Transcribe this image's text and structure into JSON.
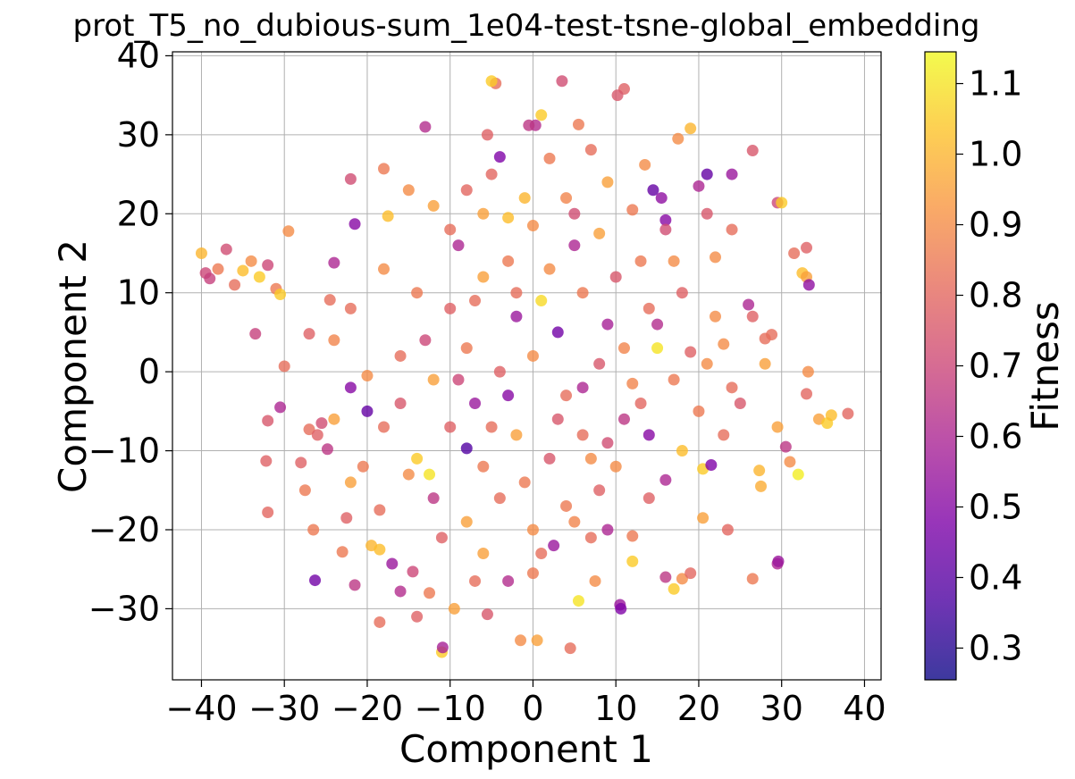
{
  "chart_data": {
    "type": "scatter",
    "title": "prot_T5_no_dubious-sum_1e04-test-tsne-global_embedding",
    "xlabel": "Component 1",
    "ylabel": "Component 2",
    "xlim": [
      -43.5,
      42
    ],
    "ylim": [
      -39,
      40.5
    ],
    "xticks": [
      -40,
      -30,
      -20,
      -10,
      0,
      10,
      20,
      30,
      40
    ],
    "yticks": [
      -30,
      -20,
      -10,
      0,
      10,
      20,
      30,
      40
    ],
    "xtick_labels": [
      "−40",
      "−30",
      "−20",
      "−10",
      "0",
      "10",
      "20",
      "30",
      "40"
    ],
    "ytick_labels": [
      "−30",
      "−20",
      "−10",
      "0",
      "10",
      "20",
      "30",
      "40"
    ],
    "grid": true,
    "colormap": "plasma",
    "colorbar": {
      "label": "Fitness",
      "range": [
        0.255,
        1.145
      ],
      "ticks": [
        0.3,
        0.4,
        0.5,
        0.6,
        0.7,
        0.8,
        0.9,
        1.0,
        1.1
      ],
      "tick_labels": [
        "0.3",
        "0.4",
        "0.5",
        "0.6",
        "0.7",
        "0.8",
        "0.9",
        "1.0",
        "1.1"
      ]
    },
    "points": [
      [
        -40,
        15,
        1.0
      ],
      [
        -39.5,
        12.5,
        0.7
      ],
      [
        -39,
        11.8,
        0.68
      ],
      [
        -38,
        13,
        0.85
      ],
      [
        -37,
        15.5,
        0.72
      ],
      [
        -36,
        11,
        0.82
      ],
      [
        -35,
        12.8,
        1.02
      ],
      [
        -34,
        14,
        0.9
      ],
      [
        -33,
        12,
        1.05
      ],
      [
        -32,
        13.5,
        0.7
      ],
      [
        -31,
        10.5,
        0.85
      ],
      [
        -30.5,
        9.8,
        1.05
      ],
      [
        -33.5,
        4.8,
        0.68
      ],
      [
        -30,
        0.7,
        0.82
      ],
      [
        -30.5,
        -4.5,
        0.6
      ],
      [
        -32,
        -6.2,
        0.75
      ],
      [
        -32.2,
        -11.3,
        0.78
      ],
      [
        -32,
        -17.8,
        0.8
      ],
      [
        -28,
        -11.5,
        0.78
      ],
      [
        -27.5,
        -15,
        0.85
      ],
      [
        -27,
        -7.3,
        0.82
      ],
      [
        -26.5,
        -20,
        0.85
      ],
      [
        -26.3,
        -26.4,
        0.45
      ],
      [
        -25.5,
        -6.5,
        0.72
      ],
      [
        -24.8,
        -9.8,
        0.65
      ],
      [
        -24,
        -6,
        0.95
      ],
      [
        -23,
        -22.8,
        0.85
      ],
      [
        -22.5,
        -18.5,
        0.78
      ],
      [
        -21.5,
        -27,
        0.65
      ],
      [
        -20.5,
        -12,
        0.85
      ],
      [
        -19.5,
        -22,
        1.0
      ],
      [
        -18.5,
        -22.5,
        1.02
      ],
      [
        -18.5,
        -31.7,
        0.82
      ],
      [
        -17,
        -24.3,
        0.55
      ],
      [
        -16,
        -27.8,
        0.62
      ],
      [
        -14.5,
        -25.3,
        0.7
      ],
      [
        -14,
        -31,
        0.78
      ],
      [
        -12.5,
        -28,
        0.85
      ],
      [
        -11,
        -35.5,
        1.05
      ],
      [
        -10.9,
        -34.9,
        0.58
      ],
      [
        -9.5,
        -30,
        0.95
      ],
      [
        -8,
        -9.7,
        0.38
      ],
      [
        -7,
        -26.5,
        0.82
      ],
      [
        -5.5,
        -30.7,
        0.75
      ],
      [
        -3,
        -26.5,
        0.62
      ],
      [
        -1.5,
        -34,
        0.9
      ],
      [
        0,
        -25.5,
        0.85
      ],
      [
        0.5,
        -34,
        0.95
      ],
      [
        2.5,
        -22,
        0.55
      ],
      [
        4.5,
        -35,
        0.82
      ],
      [
        5.5,
        -29,
        1.1
      ],
      [
        7.5,
        -26.5,
        0.9
      ],
      [
        9,
        -20,
        0.6
      ],
      [
        10.5,
        -29.5,
        0.55
      ],
      [
        10.6,
        -30,
        0.48
      ],
      [
        12,
        -20.8,
        0.85
      ],
      [
        14,
        -16,
        0.78
      ],
      [
        16,
        -26,
        0.65
      ],
      [
        17,
        -27.5,
        1.05
      ],
      [
        18,
        -26.2,
        0.9
      ],
      [
        19,
        -25.5,
        0.8
      ],
      [
        20.5,
        -18.5,
        0.95
      ],
      [
        23.5,
        -20,
        0.8
      ],
      [
        26.5,
        -26.2,
        0.85
      ],
      [
        29.5,
        -24.3,
        0.6
      ],
      [
        29.6,
        -24,
        0.55
      ],
      [
        27.5,
        -14.5,
        0.98
      ],
      [
        27.3,
        -12.5,
        1.0
      ],
      [
        30.5,
        -9.5,
        0.65
      ],
      [
        31,
        -11.4,
        0.9
      ],
      [
        32,
        -13,
        1.12
      ],
      [
        33,
        -2.8,
        0.8
      ],
      [
        33.2,
        0,
        0.9
      ],
      [
        34.5,
        -6,
        0.95
      ],
      [
        35.5,
        -6.5,
        1.05
      ],
      [
        36,
        -5.5,
        1.02
      ],
      [
        38,
        -5.3,
        0.8
      ],
      [
        29.5,
        -7,
        0.95
      ],
      [
        32.5,
        12.5,
        1.02
      ],
      [
        33,
        12,
        0.95
      ],
      [
        33.3,
        11,
        0.52
      ],
      [
        31.5,
        15,
        0.82
      ],
      [
        33,
        15.7,
        0.78
      ],
      [
        28.8,
        4.7,
        0.82
      ],
      [
        29.5,
        21.4,
        0.7
      ],
      [
        30,
        21.4,
        1.05
      ],
      [
        26.5,
        28,
        0.75
      ],
      [
        21,
        25,
        0.42
      ],
      [
        20,
        23.5,
        0.6
      ],
      [
        21,
        20,
        0.75
      ],
      [
        24,
        25,
        0.55
      ],
      [
        19,
        30.8,
        1.0
      ],
      [
        17.5,
        29.5,
        0.9
      ],
      [
        14.5,
        23,
        0.42
      ],
      [
        15.5,
        22,
        0.52
      ],
      [
        16,
        19.2,
        0.5
      ],
      [
        13.5,
        26.2,
        0.9
      ],
      [
        11,
        35.8,
        0.78
      ],
      [
        10.2,
        35,
        0.75
      ],
      [
        7,
        28.1,
        0.82
      ],
      [
        5.5,
        31.3,
        0.85
      ],
      [
        3.5,
        36.8,
        0.72
      ],
      [
        0.3,
        31.2,
        0.62
      ],
      [
        -0.5,
        31.2,
        0.65
      ],
      [
        1,
        32.5,
        1.05
      ],
      [
        -4.5,
        36.5,
        0.82
      ],
      [
        -5,
        36.8,
        1.05
      ],
      [
        -5.5,
        30,
        0.78
      ],
      [
        -4,
        27.2,
        0.48
      ],
      [
        -13,
        31,
        0.62
      ],
      [
        -18,
        25.7,
        0.85
      ],
      [
        -21.5,
        18.7,
        0.5
      ],
      [
        -22,
        24.4,
        0.72
      ],
      [
        -24,
        13.8,
        0.6
      ],
      [
        -24.5,
        9.1,
        0.82
      ],
      [
        -29.5,
        17.8,
        0.9
      ],
      [
        -17.5,
        19.7,
        1.02
      ],
      [
        -15,
        23,
        0.9
      ],
      [
        -12,
        21,
        0.95
      ],
      [
        -8,
        23,
        0.8
      ],
      [
        -6,
        20,
        0.95
      ],
      [
        -3,
        19.5,
        1.02
      ],
      [
        0,
        18.5,
        0.9
      ],
      [
        4,
        22,
        0.88
      ],
      [
        8,
        17.5,
        0.95
      ],
      [
        12,
        20.5,
        0.85
      ],
      [
        16,
        18,
        0.72
      ],
      [
        24,
        18,
        0.82
      ],
      [
        22,
        14.5,
        0.9
      ],
      [
        26,
        8.5,
        0.6
      ],
      [
        26.5,
        7,
        0.78
      ],
      [
        28,
        4.2,
        0.82
      ],
      [
        28,
        1,
        0.95
      ],
      [
        24,
        -2,
        0.82
      ],
      [
        23,
        3.5,
        0.9
      ],
      [
        19,
        2.5,
        0.78
      ],
      [
        15,
        3,
        1.1
      ],
      [
        12,
        -1.5,
        0.88
      ],
      [
        8,
        1,
        0.75
      ],
      [
        4,
        -3,
        0.82
      ],
      [
        0,
        2,
        0.9
      ],
      [
        -4,
        0,
        0.78
      ],
      [
        -8,
        3,
        0.85
      ],
      [
        -12,
        -1,
        0.95
      ],
      [
        -16,
        2,
        0.82
      ],
      [
        -20,
        -0.5,
        0.9
      ],
      [
        -22,
        -2,
        0.5
      ],
      [
        -24,
        4,
        0.88
      ],
      [
        -27,
        4.8,
        0.78
      ],
      [
        -22,
        8,
        0.82
      ],
      [
        -18,
        13,
        0.9
      ],
      [
        -14,
        10,
        0.85
      ],
      [
        -10,
        8,
        0.78
      ],
      [
        -6,
        12,
        0.95
      ],
      [
        -2,
        10,
        0.82
      ],
      [
        2,
        13,
        0.9
      ],
      [
        6,
        10,
        0.85
      ],
      [
        10,
        12,
        0.75
      ],
      [
        14,
        8,
        0.82
      ],
      [
        18,
        10,
        0.78
      ],
      [
        22,
        7,
        0.9
      ],
      [
        20,
        -5,
        0.85
      ],
      [
        18,
        -10,
        1.02
      ],
      [
        14,
        -8,
        0.5
      ],
      [
        16,
        -13.7,
        0.6
      ],
      [
        20.5,
        -12.3,
        1.05
      ],
      [
        21.5,
        -11.8,
        0.48
      ],
      [
        10,
        -12,
        0.9
      ],
      [
        6,
        -8,
        0.82
      ],
      [
        2,
        -11,
        0.75
      ],
      [
        -2,
        -8,
        0.95
      ],
      [
        -6,
        -12,
        0.85
      ],
      [
        -10,
        -7,
        0.78
      ],
      [
        -14,
        -11,
        1.05
      ],
      [
        -18,
        -7,
        0.82
      ],
      [
        -20,
        -5,
        0.42
      ],
      [
        -16,
        -4,
        0.75
      ],
      [
        -12,
        -16,
        0.65
      ],
      [
        -8,
        -19,
        0.95
      ],
      [
        -4,
        -16,
        0.82
      ],
      [
        0,
        -20,
        0.9
      ],
      [
        4,
        -17,
        0.85
      ],
      [
        8,
        -15,
        0.78
      ],
      [
        12,
        -24,
        1.05
      ],
      [
        -12.5,
        -13,
        1.1
      ],
      [
        -15,
        -13,
        0.9
      ],
      [
        -18.5,
        -17.5,
        0.82
      ],
      [
        -22,
        -14,
        0.95
      ],
      [
        -26,
        -8,
        0.78
      ],
      [
        -3,
        -3,
        0.5
      ],
      [
        3,
        5,
        0.45
      ],
      [
        -2,
        7,
        0.55
      ],
      [
        5,
        16,
        0.6
      ],
      [
        -7,
        -4,
        0.55
      ],
      [
        9,
        6,
        0.58
      ],
      [
        15,
        6,
        0.62
      ],
      [
        11,
        -6,
        0.65
      ],
      [
        -9,
        16,
        0.6
      ],
      [
        -13,
        4,
        0.7
      ],
      [
        7,
        -21,
        0.82
      ],
      [
        -5,
        25,
        0.8
      ],
      [
        2,
        27,
        0.85
      ],
      [
        9,
        24,
        0.95
      ],
      [
        -10,
        18,
        0.82
      ],
      [
        -1,
        22,
        1.0
      ],
      [
        5,
        20,
        0.72
      ],
      [
        13,
        14,
        0.85
      ],
      [
        17,
        14,
        0.9
      ],
      [
        -3,
        14,
        0.85
      ],
      [
        -7,
        9,
        0.82
      ],
      [
        1,
        9,
        1.08
      ],
      [
        11,
        3,
        0.88
      ],
      [
        6,
        -2,
        0.6
      ],
      [
        -9,
        -1,
        0.7
      ],
      [
        -5,
        -7,
        0.82
      ],
      [
        3,
        -6,
        0.75
      ],
      [
        7,
        -11,
        0.9
      ],
      [
        -1,
        -14,
        0.85
      ],
      [
        -11,
        -21,
        0.78
      ],
      [
        -6,
        -23,
        0.95
      ],
      [
        1,
        -23,
        0.82
      ],
      [
        5,
        -19,
        0.88
      ],
      [
        9,
        -9,
        0.72
      ],
      [
        13,
        -4,
        0.8
      ],
      [
        17,
        -1,
        0.85
      ],
      [
        21,
        1,
        0.9
      ],
      [
        25,
        -4,
        0.75
      ],
      [
        23,
        -8,
        0.82
      ]
    ]
  }
}
